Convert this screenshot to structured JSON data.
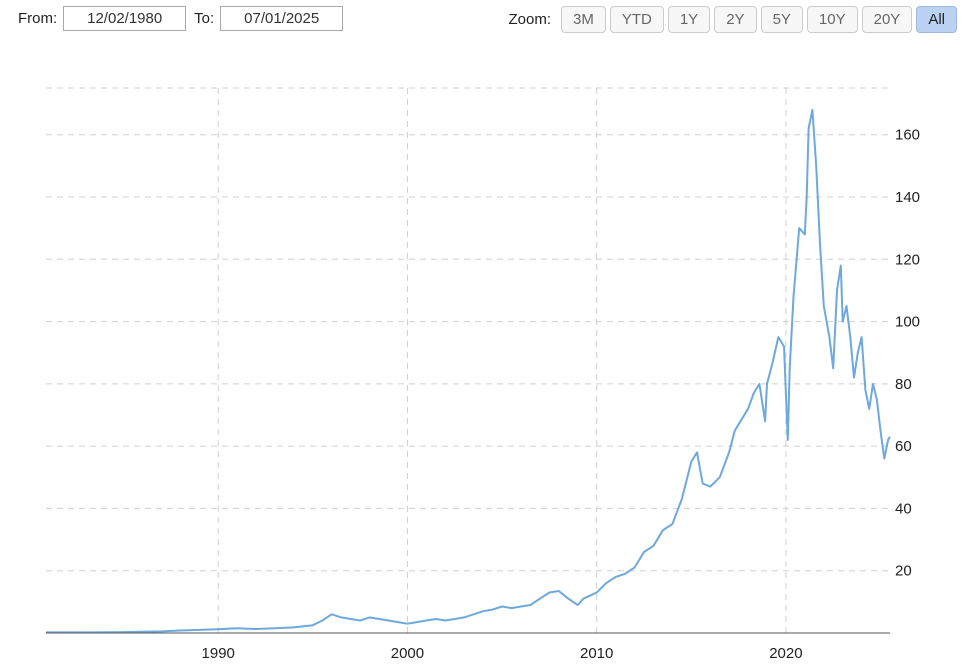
{
  "range": {
    "from_label": "From:",
    "from_value": "12/02/1980",
    "to_label": "To:",
    "to_value": "07/01/2025"
  },
  "zoom": {
    "label": "Zoom:",
    "buttons": [
      "3M",
      "YTD",
      "1Y",
      "2Y",
      "5Y",
      "10Y",
      "20Y",
      "All"
    ],
    "active": "All"
  },
  "chart_data": {
    "type": "line",
    "title": "",
    "xlabel": "",
    "ylabel": "",
    "xlim": [
      1980.9,
      2025.5
    ],
    "ylim": [
      0,
      175
    ],
    "x_ticks": [
      1990,
      2000,
      2010,
      2020
    ],
    "x_tick_labels": [
      "1990",
      "2000",
      "2010",
      "2020"
    ],
    "y_ticks": [
      20,
      40,
      60,
      80,
      100,
      120,
      140,
      160
    ],
    "y_tick_labels": [
      "20",
      "40",
      "60",
      "80",
      "100",
      "120",
      "140",
      "160"
    ],
    "grid": true,
    "line_color": "#6fa8dc",
    "series": [
      {
        "x": [
          1980.9,
          1983,
          1985,
          1987,
          1988,
          1989,
          1990,
          1991,
          1992,
          1993,
          1994,
          1995,
          1995.5,
          1996,
          1996.5,
          1997,
          1997.5,
          1998,
          1998.5,
          1999,
          1999.5,
          2000,
          2000.5,
          2001,
          2001.5,
          2002,
          2002.5,
          2003,
          2003.5,
          2004,
          2004.5,
          2005,
          2005.5,
          2006,
          2006.5,
          2007,
          2007.5,
          2008,
          2008.5,
          2009,
          2009.3,
          2010,
          2010.5,
          2011,
          2011.5,
          2012,
          2012.5,
          2013,
          2013.5,
          2014,
          2014.5,
          2015,
          2015.3,
          2015.6,
          2016,
          2016.5,
          2017,
          2017.3,
          2017.6,
          2018,
          2018.3,
          2018.6,
          2018.9,
          2019,
          2019.3,
          2019.6,
          2019.9,
          2020.1,
          2020.2,
          2020.4,
          2020.7,
          2021,
          2021.1,
          2021.2,
          2021.4,
          2021.6,
          2021.8,
          2022,
          2022.3,
          2022.5,
          2022.7,
          2022.9,
          2023,
          2023.2,
          2023.4,
          2023.6,
          2023.8,
          2024,
          2024.2,
          2024.4,
          2024.6,
          2024.8,
          2025,
          2025.2,
          2025.4,
          2025.5
        ],
        "y": [
          0.2,
          0.2,
          0.3,
          0.5,
          0.8,
          1.0,
          1.2,
          1.5,
          1.3,
          1.5,
          1.8,
          2.5,
          4.0,
          6.0,
          5.0,
          4.5,
          4.0,
          5.0,
          4.5,
          4.0,
          3.5,
          3.0,
          3.5,
          4.0,
          4.5,
          4.0,
          4.5,
          5.0,
          6.0,
          7.0,
          7.5,
          8.5,
          8.0,
          8.5,
          9.0,
          11.0,
          13.0,
          13.5,
          11.0,
          9.0,
          11.0,
          13.0,
          16.0,
          18.0,
          19.0,
          21.0,
          26.0,
          28.0,
          33.0,
          35.0,
          43.0,
          55.0,
          58.0,
          48.0,
          47.0,
          50.0,
          58.0,
          65.0,
          68.0,
          72.0,
          77.0,
          80.0,
          68.0,
          80.0,
          87.0,
          95.0,
          92.0,
          62.0,
          85.0,
          108.0,
          130.0,
          128.0,
          140.0,
          162.0,
          168.0,
          150.0,
          125.0,
          105.0,
          95.0,
          85.0,
          110.0,
          118.0,
          100.0,
          105.0,
          95.0,
          82.0,
          90.0,
          95.0,
          78.0,
          72.0,
          80.0,
          75.0,
          65.0,
          56.0,
          62.0,
          63.0
        ]
      }
    ]
  }
}
